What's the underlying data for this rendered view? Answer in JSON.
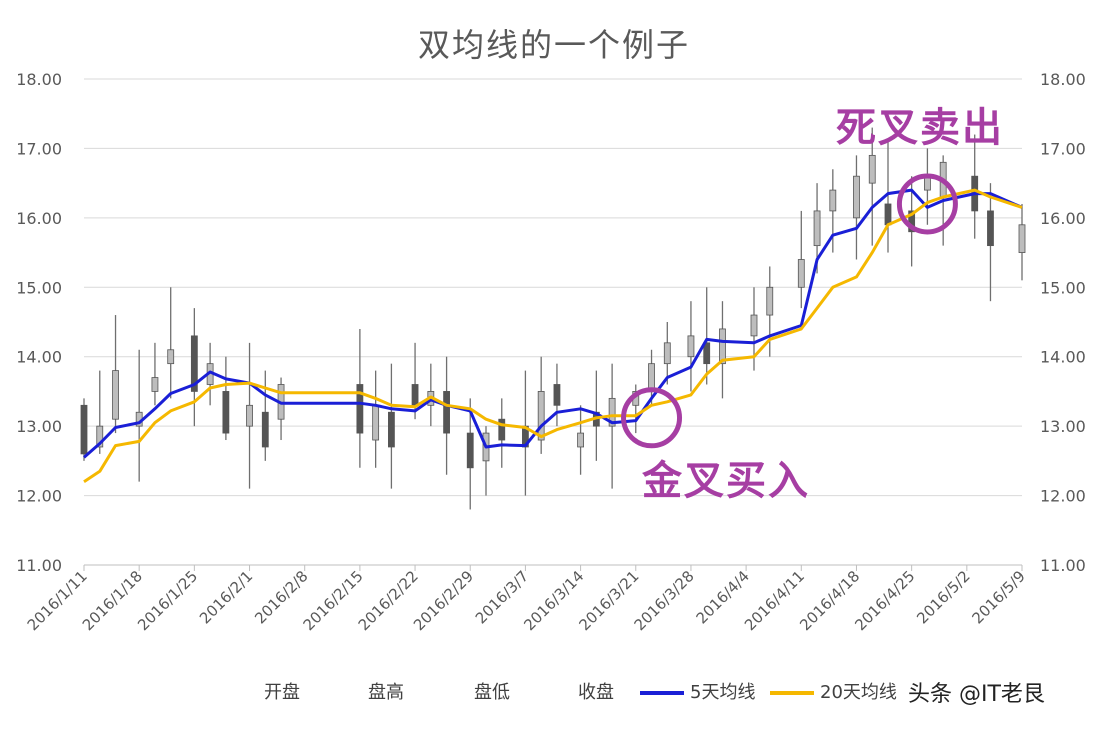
{
  "chart_data": {
    "type": "line",
    "title": "双均线的一个例子",
    "ylim": [
      11,
      18
    ],
    "yticks": [
      "11.00",
      "12.00",
      "13.00",
      "14.00",
      "15.00",
      "16.00",
      "17.00",
      "18.00"
    ],
    "secondary_yticks": [
      "11.00",
      "12.00",
      "13.00",
      "14.00",
      "15.00",
      "16.00",
      "17.00",
      "18.00"
    ],
    "grid": true,
    "x_tick_labels": [
      "2016/1/11",
      "2016/1/18",
      "2016/1/25",
      "2016/2/1",
      "2016/2/8",
      "2016/2/15",
      "2016/2/22",
      "2016/2/29",
      "2016/3/7",
      "2016/3/14",
      "2016/3/21",
      "2016/3/28",
      "2016/4/4",
      "2016/4/11",
      "2016/4/18",
      "2016/4/25",
      "2016/5/2",
      "2016/5/9"
    ],
    "legend": [
      "开盘",
      "盘高",
      "盘低",
      "收盘",
      "5天均线",
      "20天均线"
    ],
    "legend_position": "bottom",
    "x": [
      "2016/1/11",
      "2016/1/13",
      "2016/1/15",
      "2016/1/18",
      "2016/1/20",
      "2016/1/22",
      "2016/1/25",
      "2016/1/27",
      "2016/1/29",
      "2016/2/1",
      "2016/2/3",
      "2016/2/5",
      "2016/2/15",
      "2016/2/17",
      "2016/2/19",
      "2016/2/22",
      "2016/2/24",
      "2016/2/26",
      "2016/2/29",
      "2016/3/2",
      "2016/3/4",
      "2016/3/7",
      "2016/3/9",
      "2016/3/11",
      "2016/3/14",
      "2016/3/16",
      "2016/3/18",
      "2016/3/21",
      "2016/3/23",
      "2016/3/25",
      "2016/3/28",
      "2016/3/30",
      "2016/4/1",
      "2016/4/5",
      "2016/4/7",
      "2016/4/11",
      "2016/4/13",
      "2016/4/15",
      "2016/4/18",
      "2016/4/20",
      "2016/4/22",
      "2016/4/25",
      "2016/4/27",
      "2016/4/29",
      "2016/5/3",
      "2016/5/5",
      "2016/5/9"
    ],
    "candles": [
      [
        13.3,
        13.4,
        12.5,
        12.6
      ],
      [
        12.7,
        13.8,
        12.6,
        13.0
      ],
      [
        13.1,
        14.6,
        12.9,
        13.8
      ],
      [
        13.0,
        14.1,
        12.2,
        13.2
      ],
      [
        13.5,
        14.2,
        13.3,
        13.7
      ],
      [
        13.9,
        15.0,
        13.4,
        14.1
      ],
      [
        14.3,
        14.7,
        13.0,
        13.5
      ],
      [
        13.6,
        14.2,
        13.3,
        13.9
      ],
      [
        13.5,
        14.0,
        12.8,
        12.9
      ],
      [
        13.0,
        14.2,
        12.1,
        13.3
      ],
      [
        13.2,
        13.8,
        12.5,
        12.7
      ],
      [
        13.1,
        13.7,
        12.8,
        13.6
      ],
      [
        13.6,
        14.4,
        12.4,
        12.9
      ],
      [
        12.8,
        13.8,
        12.4,
        13.3
      ],
      [
        13.2,
        13.9,
        12.1,
        12.7
      ],
      [
        13.6,
        14.2,
        13.1,
        13.3
      ],
      [
        13.3,
        13.9,
        13.0,
        13.5
      ],
      [
        13.5,
        14.0,
        12.3,
        12.9
      ],
      [
        12.9,
        13.4,
        11.8,
        12.4
      ],
      [
        12.5,
        13.0,
        12.0,
        12.9
      ],
      [
        13.1,
        13.4,
        12.4,
        12.8
      ],
      [
        13.0,
        13.8,
        12.0,
        12.7
      ],
      [
        12.8,
        14.0,
        12.6,
        13.5
      ],
      [
        13.6,
        13.9,
        13.0,
        13.3
      ],
      [
        12.7,
        13.3,
        12.3,
        12.9
      ],
      [
        13.2,
        13.8,
        12.5,
        13.0
      ],
      [
        13.0,
        13.9,
        12.1,
        13.4
      ],
      [
        13.3,
        13.6,
        12.9,
        13.5
      ],
      [
        13.5,
        14.1,
        13.3,
        13.9
      ],
      [
        13.9,
        14.5,
        13.6,
        14.2
      ],
      [
        14.0,
        14.8,
        13.5,
        14.3
      ],
      [
        14.2,
        15.0,
        13.6,
        13.9
      ],
      [
        13.9,
        14.8,
        13.4,
        14.4
      ],
      [
        14.3,
        15.0,
        13.8,
        14.6
      ],
      [
        14.6,
        15.3,
        14.0,
        15.0
      ],
      [
        15.0,
        16.1,
        14.7,
        15.4
      ],
      [
        15.6,
        16.5,
        15.2,
        16.1
      ],
      [
        16.1,
        16.7,
        15.5,
        16.4
      ],
      [
        16.0,
        16.9,
        15.4,
        16.6
      ],
      [
        16.5,
        17.3,
        15.6,
        16.9
      ],
      [
        16.2,
        17.1,
        15.5,
        15.9
      ],
      [
        16.1,
        16.6,
        15.3,
        15.8
      ],
      [
        16.4,
        17.0,
        15.9,
        16.6
      ],
      [
        16.3,
        16.9,
        15.6,
        16.8
      ],
      [
        16.6,
        17.2,
        15.7,
        16.1
      ],
      [
        16.1,
        16.5,
        14.8,
        15.6
      ],
      [
        15.5,
        16.2,
        15.1,
        15.9
      ]
    ],
    "series": [
      {
        "name": "5天均线",
        "color": "#1a1fd6",
        "points": [
          [
            "2016/1/11",
            12.55
          ],
          [
            "2016/1/13",
            12.75
          ],
          [
            "2016/1/15",
            12.98
          ],
          [
            "2016/1/18",
            13.05
          ],
          [
            "2016/1/20",
            13.25
          ],
          [
            "2016/1/22",
            13.47
          ],
          [
            "2016/1/25",
            13.6
          ],
          [
            "2016/1/27",
            13.78
          ],
          [
            "2016/1/29",
            13.68
          ],
          [
            "2016/2/1",
            13.62
          ],
          [
            "2016/2/3",
            13.45
          ],
          [
            "2016/2/5",
            13.33
          ],
          [
            "2016/2/15",
            13.33
          ],
          [
            "2016/2/17",
            13.3
          ],
          [
            "2016/2/19",
            13.25
          ],
          [
            "2016/2/22",
            13.22
          ],
          [
            "2016/2/24",
            13.38
          ],
          [
            "2016/2/26",
            13.3
          ],
          [
            "2016/2/29",
            13.22
          ],
          [
            "2016/3/2",
            12.7
          ],
          [
            "2016/3/4",
            12.73
          ],
          [
            "2016/3/7",
            12.72
          ],
          [
            "2016/3/9",
            13.0
          ],
          [
            "2016/3/11",
            13.2
          ],
          [
            "2016/3/14",
            13.25
          ],
          [
            "2016/3/16",
            13.18
          ],
          [
            "2016/3/18",
            13.05
          ],
          [
            "2016/3/21",
            13.08
          ],
          [
            "2016/3/23",
            13.4
          ],
          [
            "2016/3/25",
            13.7
          ],
          [
            "2016/3/28",
            13.85
          ],
          [
            "2016/3/30",
            14.25
          ],
          [
            "2016/4/1",
            14.22
          ],
          [
            "2016/4/5",
            14.2
          ],
          [
            "2016/4/7",
            14.3
          ],
          [
            "2016/4/11",
            14.45
          ],
          [
            "2016/4/13",
            15.4
          ],
          [
            "2016/4/15",
            15.75
          ],
          [
            "2016/4/18",
            15.85
          ],
          [
            "2016/4/20",
            16.15
          ],
          [
            "2016/4/22",
            16.35
          ],
          [
            "2016/4/25",
            16.4
          ],
          [
            "2016/4/27",
            16.15
          ],
          [
            "2016/4/29",
            16.25
          ],
          [
            "2016/5/3",
            16.35
          ],
          [
            "2016/5/5",
            16.35
          ],
          [
            "2016/5/9",
            16.15
          ]
        ]
      },
      {
        "name": "20天均线",
        "color": "#f5b800",
        "points": [
          [
            "2016/1/11",
            12.2
          ],
          [
            "2016/1/13",
            12.35
          ],
          [
            "2016/1/15",
            12.72
          ],
          [
            "2016/1/18",
            12.78
          ],
          [
            "2016/1/20",
            13.05
          ],
          [
            "2016/1/22",
            13.22
          ],
          [
            "2016/1/25",
            13.35
          ],
          [
            "2016/1/27",
            13.55
          ],
          [
            "2016/1/29",
            13.6
          ],
          [
            "2016/2/1",
            13.62
          ],
          [
            "2016/2/3",
            13.55
          ],
          [
            "2016/2/5",
            13.48
          ],
          [
            "2016/2/15",
            13.48
          ],
          [
            "2016/2/17",
            13.4
          ],
          [
            "2016/2/19",
            13.3
          ],
          [
            "2016/2/22",
            13.28
          ],
          [
            "2016/2/24",
            13.42
          ],
          [
            "2016/2/26",
            13.3
          ],
          [
            "2016/2/29",
            13.25
          ],
          [
            "2016/3/2",
            13.1
          ],
          [
            "2016/3/4",
            13.02
          ],
          [
            "2016/3/7",
            12.98
          ],
          [
            "2016/3/9",
            12.85
          ],
          [
            "2016/3/11",
            12.95
          ],
          [
            "2016/3/14",
            13.05
          ],
          [
            "2016/3/16",
            13.12
          ],
          [
            "2016/3/18",
            13.15
          ],
          [
            "2016/3/21",
            13.15
          ],
          [
            "2016/3/23",
            13.3
          ],
          [
            "2016/3/25",
            13.35
          ],
          [
            "2016/3/28",
            13.45
          ],
          [
            "2016/3/30",
            13.75
          ],
          [
            "2016/4/1",
            13.95
          ],
          [
            "2016/4/5",
            14.0
          ],
          [
            "2016/4/7",
            14.25
          ],
          [
            "2016/4/11",
            14.4
          ],
          [
            "2016/4/13",
            14.7
          ],
          [
            "2016/4/15",
            15.0
          ],
          [
            "2016/4/18",
            15.15
          ],
          [
            "2016/4/20",
            15.5
          ],
          [
            "2016/4/22",
            15.9
          ],
          [
            "2016/4/25",
            16.05
          ],
          [
            "2016/4/27",
            16.22
          ],
          [
            "2016/4/29",
            16.3
          ],
          [
            "2016/5/3",
            16.4
          ],
          [
            "2016/5/5",
            16.3
          ],
          [
            "2016/5/9",
            16.15
          ]
        ]
      }
    ],
    "annotations": [
      {
        "text": "金叉买入",
        "x": "2016/3/23",
        "y": 13.12
      },
      {
        "text": "死叉卖出",
        "x": "2016/4/27",
        "y": 16.2
      }
    ],
    "colors": {
      "candle_down": "#555555",
      "candle_up": "#bdbdbd",
      "annotation": "#a63ea3"
    }
  },
  "watermark": "头条 @IT老艮"
}
